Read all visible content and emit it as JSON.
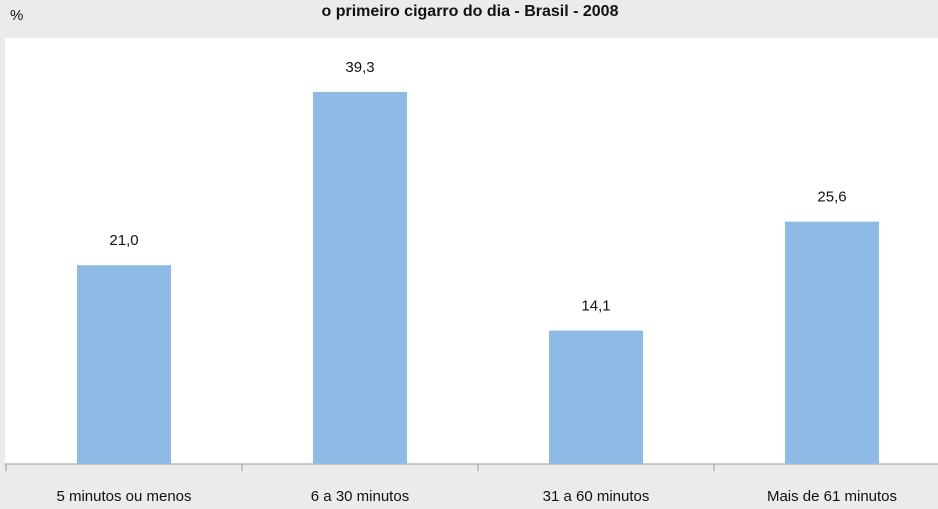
{
  "chart_data": {
    "type": "bar",
    "title": "o primeiro cigarro do dia - Brasil - 2008",
    "y_label": "%",
    "categories": [
      "5 minutos ou menos",
      "6 a 30 minutos",
      "31 a 60 minutos",
      "Mais de 61 minutos"
    ],
    "values": [
      21.0,
      39.3,
      14.1,
      25.6
    ],
    "value_labels": [
      "21,0",
      "39,3",
      "14,1",
      "25,6"
    ],
    "color": "#8ebbe5",
    "ylim": [
      0,
      45
    ]
  }
}
